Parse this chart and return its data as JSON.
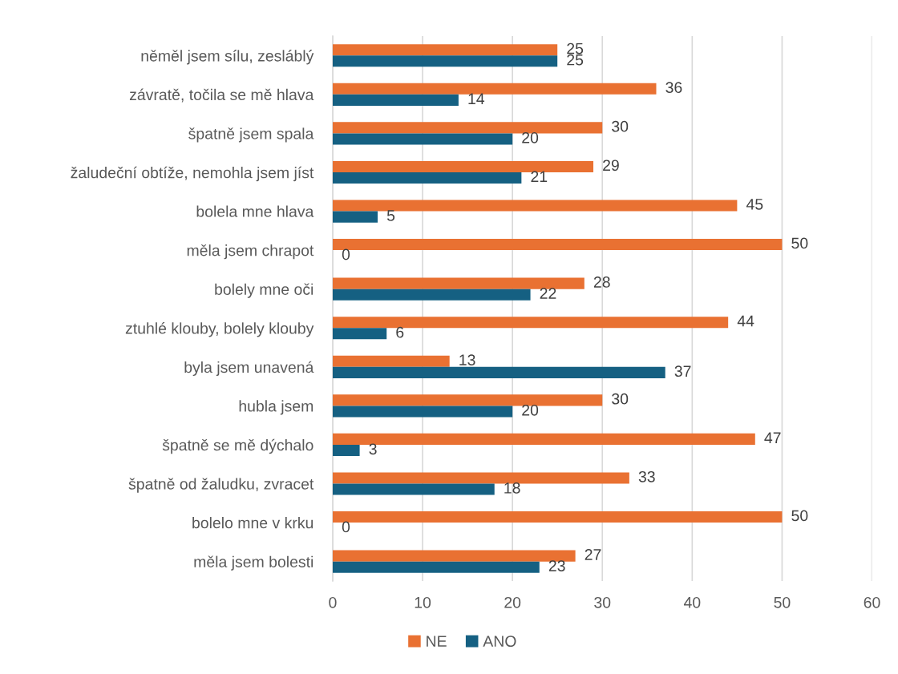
{
  "chart_data": {
    "type": "bar",
    "orientation": "horizontal",
    "categories": [
      "něměl jsem sílu, zesláblý",
      "závratě, točila se mě hlava",
      "špatně jsem spala",
      "žaludeční obtíže, nemohla jsem jíst",
      "bolela mne hlava",
      "měla jsem chrapot",
      "bolely mne oči",
      "ztuhlé klouby, bolely klouby",
      "byla jsem unavená",
      "hubla jsem",
      "špatně se mě dýchalo",
      "špatně od žaludku, zvracet",
      "bolelo mne v krku",
      "měla jsem bolesti"
    ],
    "series": [
      {
        "name": "NE",
        "color": "#e97132",
        "values": [
          25,
          36,
          30,
          29,
          45,
          50,
          28,
          44,
          13,
          30,
          47,
          33,
          50,
          27
        ]
      },
      {
        "name": "ANO",
        "color": "#156082",
        "values": [
          25,
          14,
          20,
          21,
          5,
          0,
          22,
          6,
          37,
          20,
          3,
          18,
          0,
          23
        ]
      }
    ],
    "xlim": [
      0,
      60
    ],
    "xticks": [
      0,
      10,
      20,
      30,
      40,
      50,
      60
    ],
    "grid": "x",
    "legend": "bottom",
    "data_labels": true
  }
}
